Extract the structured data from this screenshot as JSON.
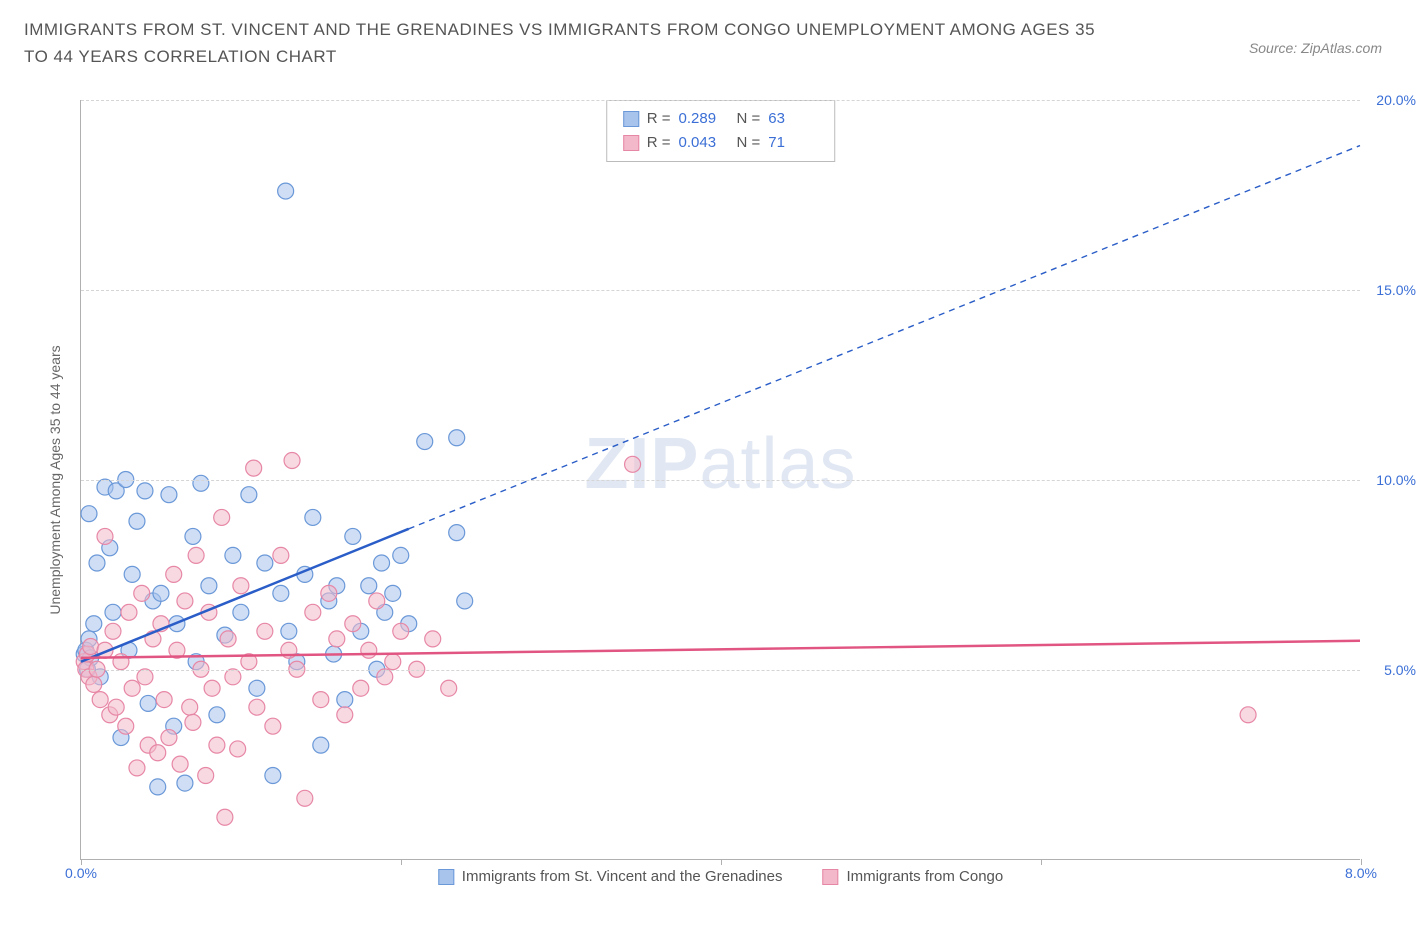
{
  "header": {
    "title": "IMMIGRANTS FROM ST. VINCENT AND THE GRENADINES VS IMMIGRANTS FROM CONGO UNEMPLOYMENT AMONG AGES 35 TO 44 YEARS CORRELATION CHART",
    "source": "Source: ZipAtlas.com"
  },
  "chart": {
    "type": "scatter",
    "ylabel": "Unemployment Among Ages 35 to 44 years",
    "background_color": "#ffffff",
    "grid_color": "#d5d5d5",
    "axis_color": "#b0b0b0",
    "xlim": [
      0,
      8
    ],
    "ylim": [
      0,
      20
    ],
    "x_ticks": [
      0,
      2,
      4,
      6,
      8
    ],
    "x_tick_labels": [
      "0.0%",
      "",
      "",
      "",
      "8.0%"
    ],
    "y_ticks": [
      5,
      10,
      15,
      20
    ],
    "y_tick_labels": [
      "5.0%",
      "10.0%",
      "15.0%",
      "20.0%"
    ],
    "watermark": "ZIPatlas",
    "marker_radius": 8,
    "marker_opacity": 0.55,
    "line_width": 2.5,
    "series": [
      {
        "name": "Immigrants from St. Vincent and the Grenadines",
        "color_fill": "#a8c3ec",
        "color_stroke": "#6a98d8",
        "line_color": "#2a5dc7",
        "R": "0.289",
        "N": "63",
        "trend_solid": {
          "x1": 0.0,
          "y1": 5.2,
          "x2": 2.05,
          "y2": 8.7
        },
        "trend_dashed": {
          "x1": 2.05,
          "y1": 8.7,
          "x2": 8.0,
          "y2": 18.8
        },
        "points": [
          [
            0.02,
            5.4
          ],
          [
            0.03,
            5.5
          ],
          [
            0.04,
            5.0
          ],
          [
            0.05,
            5.8
          ],
          [
            0.06,
            5.3
          ],
          [
            0.05,
            9.1
          ],
          [
            0.08,
            6.2
          ],
          [
            0.1,
            7.8
          ],
          [
            0.12,
            4.8
          ],
          [
            0.15,
            9.8
          ],
          [
            0.18,
            8.2
          ],
          [
            0.2,
            6.5
          ],
          [
            0.22,
            9.7
          ],
          [
            0.25,
            3.2
          ],
          [
            0.28,
            10.0
          ],
          [
            0.3,
            5.5
          ],
          [
            0.32,
            7.5
          ],
          [
            0.35,
            8.9
          ],
          [
            0.4,
            9.7
          ],
          [
            0.42,
            4.1
          ],
          [
            0.45,
            6.8
          ],
          [
            0.48,
            1.9
          ],
          [
            0.5,
            7.0
          ],
          [
            0.55,
            9.6
          ],
          [
            0.58,
            3.5
          ],
          [
            0.6,
            6.2
          ],
          [
            0.65,
            2.0
          ],
          [
            0.7,
            8.5
          ],
          [
            0.72,
            5.2
          ],
          [
            0.75,
            9.9
          ],
          [
            0.8,
            7.2
          ],
          [
            0.85,
            3.8
          ],
          [
            0.9,
            5.9
          ],
          [
            0.95,
            8.0
          ],
          [
            1.0,
            6.5
          ],
          [
            1.05,
            9.6
          ],
          [
            1.1,
            4.5
          ],
          [
            1.15,
            7.8
          ],
          [
            1.2,
            2.2
          ],
          [
            1.25,
            7.0
          ],
          [
            1.28,
            17.6
          ],
          [
            1.3,
            6.0
          ],
          [
            1.35,
            5.2
          ],
          [
            1.4,
            7.5
          ],
          [
            1.45,
            9.0
          ],
          [
            1.5,
            3.0
          ],
          [
            1.55,
            6.8
          ],
          [
            1.58,
            5.4
          ],
          [
            1.6,
            7.2
          ],
          [
            1.65,
            4.2
          ],
          [
            1.7,
            8.5
          ],
          [
            1.75,
            6.0
          ],
          [
            1.8,
            7.2
          ],
          [
            1.85,
            5.0
          ],
          [
            1.88,
            7.8
          ],
          [
            1.9,
            6.5
          ],
          [
            1.95,
            7.0
          ],
          [
            2.0,
            8.0
          ],
          [
            2.05,
            6.2
          ],
          [
            2.15,
            11.0
          ],
          [
            2.35,
            11.1
          ],
          [
            2.35,
            8.6
          ],
          [
            2.4,
            6.8
          ]
        ]
      },
      {
        "name": "Immigrants from Congo",
        "color_fill": "#f3b9ca",
        "color_stroke": "#e787a6",
        "line_color": "#e15582",
        "R": "0.043",
        "N": "71",
        "trend_solid": {
          "x1": 0.0,
          "y1": 5.3,
          "x2": 8.0,
          "y2": 5.75
        },
        "trend_dashed": null,
        "points": [
          [
            0.02,
            5.2
          ],
          [
            0.03,
            5.0
          ],
          [
            0.04,
            5.4
          ],
          [
            0.05,
            4.8
          ],
          [
            0.06,
            5.6
          ],
          [
            0.08,
            4.6
          ],
          [
            0.1,
            5.0
          ],
          [
            0.12,
            4.2
          ],
          [
            0.15,
            5.5
          ],
          [
            0.18,
            3.8
          ],
          [
            0.2,
            6.0
          ],
          [
            0.22,
            4.0
          ],
          [
            0.25,
            5.2
          ],
          [
            0.28,
            3.5
          ],
          [
            0.3,
            6.5
          ],
          [
            0.32,
            4.5
          ],
          [
            0.35,
            2.4
          ],
          [
            0.38,
            7.0
          ],
          [
            0.4,
            4.8
          ],
          [
            0.42,
            3.0
          ],
          [
            0.45,
            5.8
          ],
          [
            0.48,
            2.8
          ],
          [
            0.5,
            6.2
          ],
          [
            0.52,
            4.2
          ],
          [
            0.55,
            3.2
          ],
          [
            0.58,
            7.5
          ],
          [
            0.6,
            5.5
          ],
          [
            0.62,
            2.5
          ],
          [
            0.65,
            6.8
          ],
          [
            0.68,
            4.0
          ],
          [
            0.7,
            3.6
          ],
          [
            0.72,
            8.0
          ],
          [
            0.75,
            5.0
          ],
          [
            0.78,
            2.2
          ],
          [
            0.8,
            6.5
          ],
          [
            0.82,
            4.5
          ],
          [
            0.85,
            3.0
          ],
          [
            0.88,
            9.0
          ],
          [
            0.9,
            1.1
          ],
          [
            0.92,
            5.8
          ],
          [
            0.95,
            4.8
          ],
          [
            0.98,
            2.9
          ],
          [
            1.0,
            7.2
          ],
          [
            1.05,
            5.2
          ],
          [
            1.08,
            10.3
          ],
          [
            1.1,
            4.0
          ],
          [
            1.15,
            6.0
          ],
          [
            1.2,
            3.5
          ],
          [
            1.25,
            8.0
          ],
          [
            1.3,
            5.5
          ],
          [
            1.32,
            10.5
          ],
          [
            1.35,
            5.0
          ],
          [
            1.4,
            1.6
          ],
          [
            1.45,
            6.5
          ],
          [
            1.5,
            4.2
          ],
          [
            1.55,
            7.0
          ],
          [
            1.6,
            5.8
          ],
          [
            1.65,
            3.8
          ],
          [
            1.7,
            6.2
          ],
          [
            1.75,
            4.5
          ],
          [
            1.8,
            5.5
          ],
          [
            1.85,
            6.8
          ],
          [
            1.9,
            4.8
          ],
          [
            1.95,
            5.2
          ],
          [
            2.0,
            6.0
          ],
          [
            2.1,
            5.0
          ],
          [
            2.2,
            5.8
          ],
          [
            2.3,
            4.5
          ],
          [
            3.45,
            10.4
          ],
          [
            7.3,
            3.8
          ],
          [
            0.15,
            8.5
          ]
        ]
      }
    ],
    "bottom_legend": [
      {
        "swatch_fill": "#a8c3ec",
        "swatch_stroke": "#6a98d8",
        "label": "Immigrants from St. Vincent and the Grenadines"
      },
      {
        "swatch_fill": "#f3b9ca",
        "swatch_stroke": "#e787a6",
        "label": "Immigrants from Congo"
      }
    ]
  }
}
